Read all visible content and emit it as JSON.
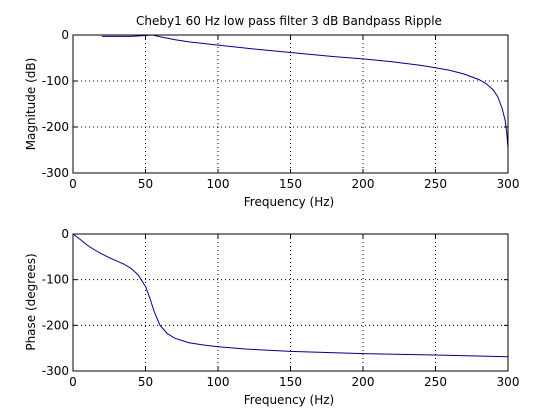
{
  "chart_data": [
    {
      "type": "line",
      "title": "Cheby1 60 Hz low pass filter 3 dB Bandpass Ripple",
      "xlabel": "Frequency (Hz)",
      "ylabel": "Magnitude (dB)",
      "xlim": [
        0,
        300
      ],
      "ylim": [
        -300,
        0
      ],
      "xticks": [
        0,
        50,
        100,
        150,
        200,
        250,
        300
      ],
      "yticks": [
        -300,
        -200,
        -100,
        0
      ],
      "grid": true,
      "line_color": "#00008b",
      "series": [
        {
          "x": [
            0,
            20,
            40,
            50,
            55,
            60,
            70,
            80,
            100,
            120,
            150,
            180,
            200,
            220,
            240,
            250,
            260,
            270,
            280,
            285,
            290,
            293,
            296,
            298,
            299,
            300
          ],
          "y": [
            null,
            -3,
            -3,
            -1,
            0,
            -4,
            -10,
            -15,
            -22,
            -29,
            -38,
            -47,
            -52,
            -58,
            -66,
            -71,
            -77,
            -85,
            -97,
            -106,
            -120,
            -135,
            -160,
            -185,
            -210,
            -245
          ]
        }
      ]
    },
    {
      "type": "line",
      "title": "",
      "xlabel": "Frequency (Hz)",
      "ylabel": "Phase (degrees)",
      "xlim": [
        0,
        300
      ],
      "ylim": [
        -300,
        0
      ],
      "xticks": [
        0,
        50,
        100,
        150,
        200,
        250,
        300
      ],
      "yticks": [
        -300,
        -200,
        -100,
        0
      ],
      "grid": true,
      "line_color": "#00008b",
      "series": [
        {
          "x": [
            0,
            5,
            10,
            15,
            20,
            25,
            30,
            35,
            40,
            45,
            50,
            53,
            56,
            60,
            65,
            70,
            80,
            90,
            100,
            120,
            150,
            200,
            250,
            300
          ],
          "y": [
            0,
            -12,
            -25,
            -35,
            -44,
            -52,
            -59,
            -66,
            -75,
            -90,
            -115,
            -140,
            -170,
            -200,
            -218,
            -228,
            -238,
            -243,
            -247,
            -252,
            -257,
            -262,
            -265,
            -269
          ]
        }
      ]
    }
  ]
}
